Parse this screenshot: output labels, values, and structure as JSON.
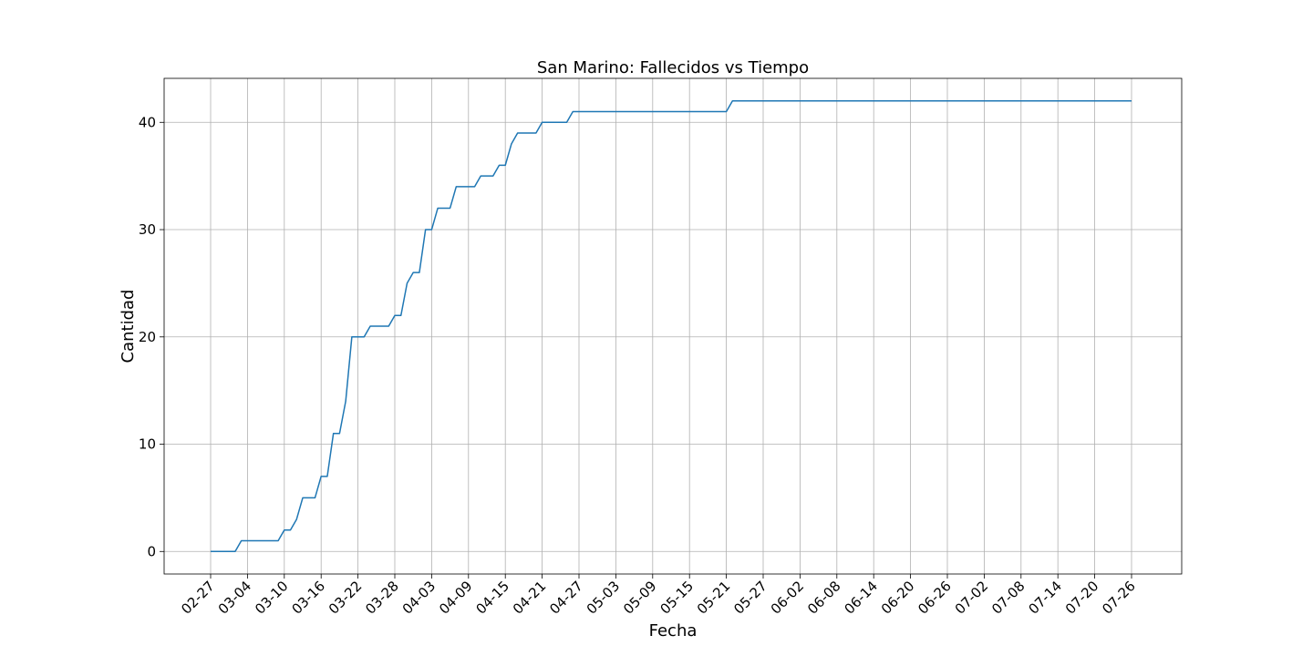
{
  "chart_data": {
    "type": "line",
    "title": "San Marino: Fallecidos vs Tiempo",
    "xlabel": "Fecha",
    "ylabel": "Cantidad",
    "x_tick_labels": [
      "02-27",
      "03-04",
      "03-10",
      "03-16",
      "03-22",
      "03-28",
      "04-03",
      "04-09",
      "04-15",
      "04-21",
      "04-27",
      "05-03",
      "05-09",
      "05-15",
      "05-21",
      "05-27",
      "06-02",
      "06-08",
      "06-14",
      "06-20",
      "06-26",
      "07-02",
      "07-08",
      "07-14",
      "07-20",
      "07-26"
    ],
    "y_ticks": [
      0,
      10,
      20,
      30,
      40
    ],
    "ylim": [
      -2.1,
      44.1
    ],
    "grid": true,
    "line_color": "#1f77b4",
    "series": [
      {
        "x": [
          "02-27",
          "02-28",
          "02-29",
          "03-01",
          "03-02",
          "03-03",
          "03-04",
          "03-05",
          "03-06",
          "03-07",
          "03-08",
          "03-09",
          "03-10",
          "03-11",
          "03-12",
          "03-13",
          "03-14",
          "03-15",
          "03-16",
          "03-17",
          "03-18",
          "03-19",
          "03-20",
          "03-21",
          "03-22",
          "03-23",
          "03-24",
          "03-25",
          "03-26",
          "03-27",
          "03-28",
          "03-29",
          "03-30",
          "03-31",
          "04-01",
          "04-02",
          "04-03",
          "04-04",
          "04-05",
          "04-06",
          "04-07",
          "04-08",
          "04-09",
          "04-10",
          "04-11",
          "04-12",
          "04-13",
          "04-14",
          "04-15",
          "04-16",
          "04-17",
          "04-18",
          "04-19",
          "04-20",
          "04-21",
          "04-22",
          "04-23",
          "04-24",
          "04-25",
          "04-26",
          "05-20",
          "05-21",
          "05-22",
          "07-26"
        ],
        "y": [
          0,
          0,
          0,
          0,
          0,
          1,
          1,
          1,
          1,
          1,
          1,
          1,
          2,
          2,
          3,
          5,
          5,
          5,
          7,
          7,
          11,
          11,
          14,
          20,
          20,
          20,
          21,
          21,
          21,
          21,
          22,
          22,
          25,
          26,
          26,
          30,
          30,
          32,
          32,
          32,
          34,
          34,
          34,
          34,
          35,
          35,
          35,
          36,
          36,
          38,
          39,
          39,
          39,
          39,
          40,
          40,
          40,
          40,
          40,
          41,
          41,
          41,
          42,
          42
        ]
      }
    ]
  }
}
